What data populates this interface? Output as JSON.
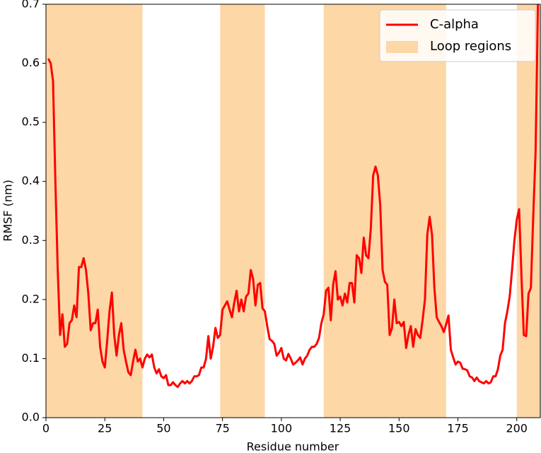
{
  "chart_data": {
    "type": "line",
    "xlabel": "Residue number",
    "ylabel": "RMSF (nm)",
    "xlim": [
      0,
      210
    ],
    "ylim": [
      0,
      0.7
    ],
    "xticks": [
      0,
      25,
      50,
      75,
      100,
      125,
      150,
      175,
      200
    ],
    "yticks": [
      {
        "value": 0,
        "label": "0.0"
      },
      0.1,
      0.2,
      0.3,
      0.4,
      0.5,
      0.6,
      0.7
    ],
    "legend": "upper right",
    "regions": {
      "name": "Loop regions",
      "color": "#fdd7a6",
      "spans": [
        [
          0,
          41
        ],
        [
          74,
          93
        ],
        [
          118,
          170
        ],
        [
          200,
          210
        ]
      ]
    },
    "series": [
      {
        "name": "C-alpha",
        "color": "#ff0000",
        "x": [
          1,
          2,
          3,
          4,
          5,
          6,
          7,
          8,
          9,
          10,
          11,
          12,
          13,
          14,
          15,
          16,
          17,
          18,
          19,
          20,
          21,
          22,
          23,
          24,
          25,
          26,
          27,
          28,
          29,
          30,
          31,
          32,
          33,
          34,
          35,
          36,
          37,
          38,
          39,
          40,
          41,
          42,
          43,
          44,
          45,
          46,
          47,
          48,
          49,
          50,
          51,
          52,
          53,
          54,
          55,
          56,
          57,
          58,
          59,
          60,
          61,
          62,
          63,
          64,
          65,
          66,
          67,
          68,
          69,
          70,
          71,
          72,
          73,
          74,
          75,
          76,
          77,
          78,
          79,
          80,
          81,
          82,
          83,
          84,
          85,
          86,
          87,
          88,
          89,
          90,
          91,
          92,
          93,
          94,
          95,
          96,
          97,
          98,
          99,
          100,
          101,
          102,
          103,
          104,
          105,
          106,
          107,
          108,
          109,
          110,
          111,
          112,
          113,
          114,
          115,
          116,
          117,
          118,
          119,
          120,
          121,
          122,
          123,
          124,
          125,
          126,
          127,
          128,
          129,
          130,
          131,
          132,
          133,
          134,
          135,
          136,
          137,
          138,
          139,
          140,
          141,
          142,
          143,
          144,
          145,
          146,
          147,
          148,
          149,
          150,
          151,
          152,
          153,
          154,
          155,
          156,
          157,
          158,
          159,
          160,
          161,
          162,
          163,
          164,
          165,
          166,
          167,
          168,
          169,
          170,
          171,
          172,
          173,
          174,
          175,
          176,
          177,
          178,
          179,
          180,
          181,
          182,
          183,
          184,
          185,
          186,
          187,
          188,
          189,
          190,
          191,
          192,
          193,
          194,
          195,
          196,
          197,
          198,
          199,
          200,
          201,
          202,
          203,
          204,
          205,
          206,
          207,
          208,
          209
        ],
        "values": [
          0.608,
          0.6,
          0.57,
          0.4,
          0.25,
          0.14,
          0.175,
          0.12,
          0.125,
          0.16,
          0.165,
          0.19,
          0.17,
          0.255,
          0.255,
          0.27,
          0.25,
          0.21,
          0.148,
          0.16,
          0.16,
          0.183,
          0.12,
          0.095,
          0.085,
          0.13,
          0.18,
          0.212,
          0.14,
          0.105,
          0.14,
          0.16,
          0.115,
          0.095,
          0.077,
          0.072,
          0.095,
          0.115,
          0.095,
          0.1,
          0.085,
          0.1,
          0.107,
          0.102,
          0.107,
          0.085,
          0.075,
          0.082,
          0.07,
          0.067,
          0.072,
          0.055,
          0.055,
          0.06,
          0.055,
          0.052,
          0.058,
          0.062,
          0.058,
          0.062,
          0.058,
          0.062,
          0.07,
          0.07,
          0.072,
          0.085,
          0.085,
          0.1,
          0.138,
          0.1,
          0.12,
          0.152,
          0.135,
          0.14,
          0.183,
          0.19,
          0.197,
          0.183,
          0.17,
          0.195,
          0.215,
          0.18,
          0.2,
          0.18,
          0.205,
          0.21,
          0.25,
          0.235,
          0.19,
          0.225,
          0.228,
          0.185,
          0.18,
          0.155,
          0.133,
          0.13,
          0.125,
          0.105,
          0.11,
          0.118,
          0.1,
          0.097,
          0.108,
          0.1,
          0.09,
          0.093,
          0.097,
          0.102,
          0.09,
          0.1,
          0.105,
          0.115,
          0.12,
          0.12,
          0.125,
          0.135,
          0.16,
          0.175,
          0.215,
          0.22,
          0.165,
          0.225,
          0.248,
          0.2,
          0.205,
          0.19,
          0.21,
          0.195,
          0.228,
          0.228,
          0.195,
          0.275,
          0.27,
          0.245,
          0.305,
          0.275,
          0.27,
          0.32,
          0.41,
          0.425,
          0.41,
          0.36,
          0.25,
          0.23,
          0.225,
          0.14,
          0.152,
          0.2,
          0.16,
          0.162,
          0.155,
          0.162,
          0.118,
          0.14,
          0.155,
          0.12,
          0.15,
          0.14,
          0.135,
          0.165,
          0.2,
          0.31,
          0.34,
          0.31,
          0.22,
          0.17,
          0.162,
          0.155,
          0.145,
          0.158,
          0.173,
          0.115,
          0.102,
          0.09,
          0.095,
          0.093,
          0.083,
          0.082,
          0.08,
          0.07,
          0.068,
          0.062,
          0.068,
          0.062,
          0.06,
          0.058,
          0.062,
          0.058,
          0.06,
          0.07,
          0.07,
          0.082,
          0.105,
          0.115,
          0.16,
          0.18,
          0.205,
          0.25,
          0.3,
          0.335,
          0.353,
          0.24,
          0.14,
          0.138,
          0.21,
          0.22,
          0.34,
          0.45,
          0.7
        ]
      }
    ]
  }
}
